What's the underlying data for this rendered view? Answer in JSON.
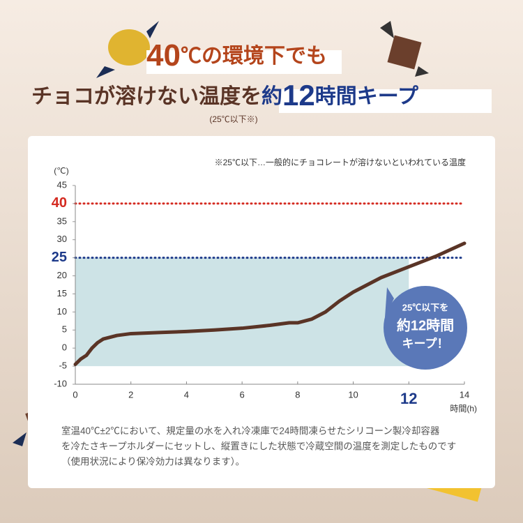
{
  "header": {
    "line1": [
      "40",
      "℃の環境下",
      "でも"
    ],
    "line2": [
      "チョコが溶けない温度を",
      "約",
      "12",
      "時間キープ"
    ],
    "sub": "(25℃以下※)"
  },
  "chart_data": {
    "type": "line",
    "note": "※25℃以下…一般的にチョコレートが溶けないといわれている温度",
    "y_unit": "(℃)",
    "x_label": "時間(h)",
    "x": [
      0,
      0.2,
      0.4,
      0.6,
      0.8,
      1,
      1.5,
      2,
      3,
      4,
      5,
      6,
      7,
      7.7,
      8,
      8.5,
      9,
      9.5,
      10,
      11,
      12,
      12.5,
      13,
      14
    ],
    "series": [
      {
        "color": "#5a3426",
        "values": [
          -4.5,
          -3,
          -2,
          0,
          1.5,
          2.5,
          3.5,
          4,
          4.3,
          4.6,
          5,
          5.5,
          6.3,
          7,
          7,
          8,
          10,
          13,
          15.5,
          19.5,
          22.5,
          24,
          25.5,
          29
        ]
      }
    ],
    "xlim": [
      0,
      14
    ],
    "ylim": [
      -10,
      45
    ],
    "xticks": [
      0,
      2,
      4,
      6,
      8,
      10,
      12,
      14
    ],
    "yticks": [
      -10,
      -5,
      0,
      5,
      10,
      15,
      20,
      25,
      30,
      35,
      40,
      45
    ],
    "reference_lines": [
      {
        "value": 40,
        "color": "#d42a20"
      },
      {
        "value": 25,
        "color": "#1d3a8a"
      }
    ],
    "shaded_region": {
      "x": [
        0,
        12
      ],
      "y": [
        -5,
        25
      ],
      "color": "#cde3e6"
    },
    "callout": [
      "25℃以下を",
      "約12時間",
      "キープ！"
    ]
  },
  "footer": [
    "室温40℃±2℃において、規定量の水を入れ冷凍庫で24時間凍らせたシリコーン製冷却容器",
    "を冷たさキープホルダーにセットし、縦置きにした状態で冷蔵空間の温度を測定したものです",
    "（使用状況により保冷効力は異なります）。"
  ]
}
